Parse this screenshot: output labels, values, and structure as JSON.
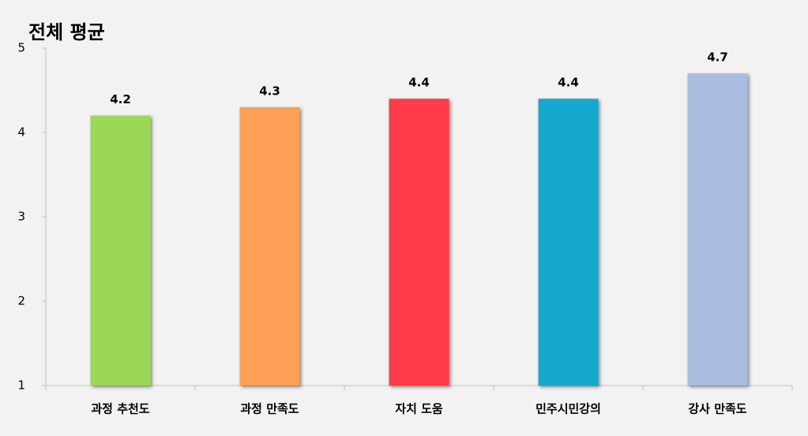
{
  "chart_data": {
    "type": "bar",
    "title": "전체 평균",
    "categories": [
      "과정 추천도",
      "과정 만족도",
      "자치 도움",
      "민주시민강의",
      "강사 만족도"
    ],
    "values": [
      4.2,
      4.3,
      4.4,
      4.4,
      4.7
    ],
    "colors": [
      "#9bd854",
      "#ff9f55",
      "#ff3a46",
      "#16a8cd",
      "#a9bde0"
    ],
    "ylim": [
      1,
      5
    ],
    "yticks": [
      1,
      2,
      3,
      4,
      5
    ],
    "grid": false
  }
}
